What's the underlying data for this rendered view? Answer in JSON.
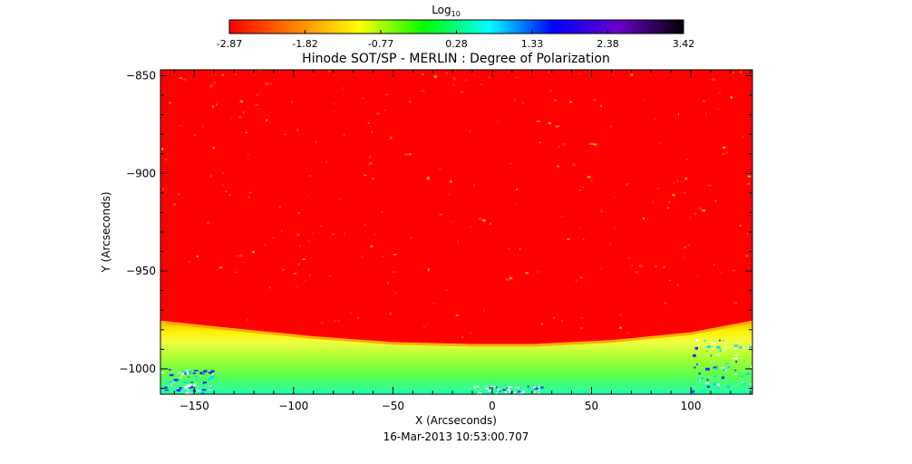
{
  "colorbar": {
    "label": "Log",
    "label_subscript": "10",
    "ticks": [
      "-2.87",
      "-1.82",
      "-0.77",
      "0.28",
      "1.33",
      "2.38",
      "3.42"
    ],
    "range": [
      -2.87,
      3.42
    ],
    "colormap": [
      "#ff0000",
      "#ff7f00",
      "#ffff00",
      "#00ff00",
      "#00ffff",
      "#0000ff",
      "#6a00c8",
      "#000000"
    ]
  },
  "chart_data": {
    "type": "heatmap",
    "title": "Hinode SOT/SP - MERLIN : Degree of Polarization",
    "xlabel": "X (Arcseconds)",
    "ylabel": "Y (Arcseconds)",
    "footer": "16-Mar-2013 10:53:00.707",
    "xlim": [
      -167,
      131
    ],
    "ylim": [
      -1013,
      -847
    ],
    "x_ticks": [
      -150,
      -100,
      -50,
      0,
      50,
      100
    ],
    "y_ticks": [
      -850,
      -900,
      -950,
      -1000
    ],
    "limb": {
      "x": [
        -167,
        -130,
        -90,
        -50,
        -10,
        20,
        60,
        100,
        131
      ],
      "y": [
        -976,
        -980,
        -984,
        -987,
        -988,
        -988,
        -986,
        -982,
        -976
      ]
    }
  }
}
